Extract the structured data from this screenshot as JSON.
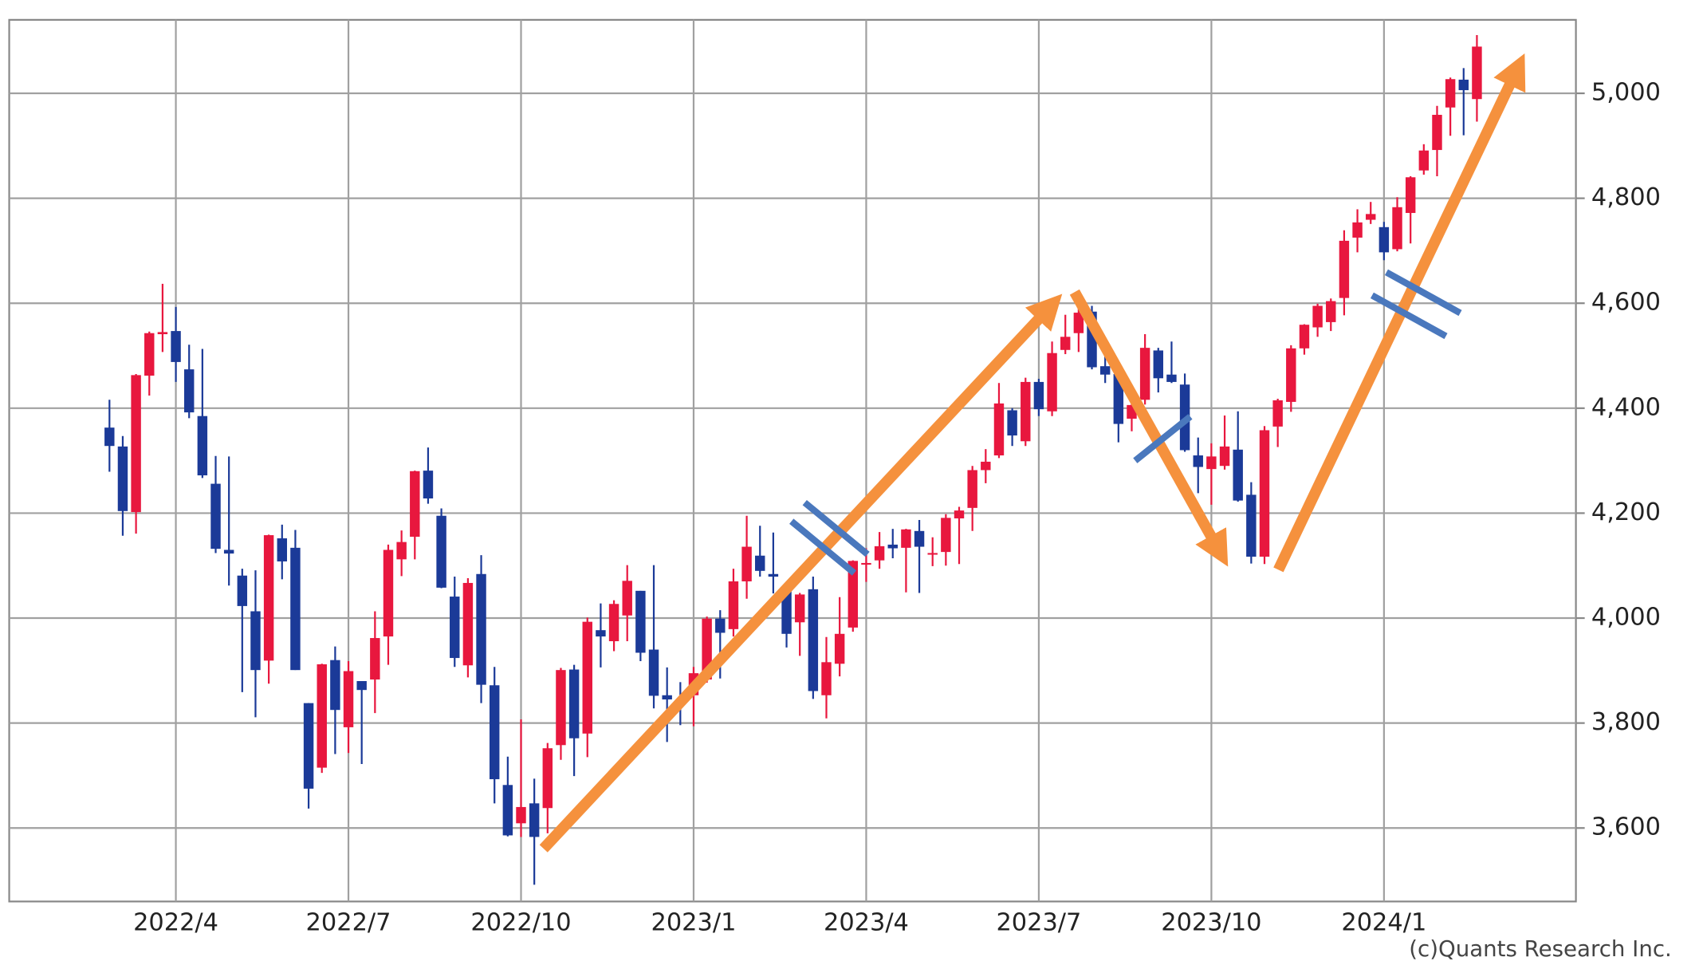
{
  "chart_data": {
    "type": "candlestick",
    "source": "(c)Quants Research Inc.",
    "categories": [
      null,
      null,
      null,
      null,
      null,
      "2022/4",
      null,
      null,
      null,
      null,
      null,
      null,
      null,
      null,
      null,
      null,
      null,
      null,
      "2022/7",
      null,
      null,
      null,
      null,
      null,
      null,
      null,
      null,
      null,
      null,
      null,
      null,
      "2022/10",
      null,
      null,
      null,
      null,
      null,
      null,
      null,
      null,
      null,
      null,
      null,
      null,
      "2023/1",
      null,
      null,
      null,
      null,
      null,
      null,
      null,
      null,
      null,
      null,
      null,
      null,
      "2023/4",
      null,
      null,
      null,
      null,
      null,
      null,
      null,
      null,
      null,
      null,
      null,
      null,
      "2023/7",
      null,
      null,
      null,
      null,
      null,
      null,
      null,
      null,
      null,
      null,
      null,
      null,
      "2023/10",
      null,
      null,
      null,
      null,
      null,
      null,
      null,
      null,
      null,
      null,
      null,
      null,
      "2024/1",
      null,
      null,
      null,
      null,
      null,
      null,
      null
    ],
    "open": [
      4363,
      4327,
      4202,
      4462,
      4541,
      4547,
      4474,
      4385,
      4256,
      4130,
      4081,
      4013,
      3919,
      4152,
      4134,
      3838,
      3715,
      3920,
      3792,
      3880,
      3883,
      3965,
      4112,
      4155,
      4281,
      4195,
      4041,
      3910,
      4084,
      3872,
      3682,
      3609,
      3647,
      3638,
      3758,
      3902,
      3780,
      3977,
      3956,
      4005,
      4052,
      3940,
      3853,
      3843,
      3853,
      3883,
      3999,
      3979,
      4070,
      4119,
      4084,
      4053,
      3992,
      4055,
      3853,
      3913,
      3982,
      4102,
      4110,
      4140,
      4134,
      4166,
      4124,
      4126,
      4190,
      4210,
      4282,
      4310,
      4396,
      4337,
      4450,
      4394,
      4511,
      4543,
      4584,
      4480,
      4465,
      4380,
      4416,
      4510,
      4464,
      4445,
      4310,
      4284,
      4290,
      4321,
      4235,
      4117,
      4365,
      4412,
      4514,
      4554,
      4564,
      4610,
      4725,
      4759,
      4745,
      4703,
      4772,
      4853,
      4892,
      4973,
      5026,
      4989
    ],
    "high": [
      4416,
      4347,
      4465,
      4546,
      4637,
      4593,
      4521,
      4513,
      4309,
      4308,
      4094,
      4091,
      4159,
      4178,
      4168,
      3838,
      3913,
      3946,
      3918,
      3880,
      4013,
      4140,
      4167,
      4281,
      4325,
      4209,
      4079,
      4076,
      4120,
      3907,
      3736,
      3807,
      3694,
      3762,
      3905,
      3911,
      4001,
      4028,
      4034,
      4101,
      4052,
      4101,
      3906,
      3878,
      3907,
      4003,
      4015,
      4094,
      4195,
      4176,
      4163,
      4053,
      4048,
      4079,
      3964,
      4040,
      4110,
      4133,
      4164,
      4170,
      4170,
      4187,
      4154,
      4198,
      4212,
      4290,
      4322,
      4448,
      4400,
      4458,
      4456,
      4527,
      4578,
      4607,
      4595,
      4528,
      4466,
      4421,
      4541,
      4515,
      4527,
      4466,
      4344,
      4333,
      4386,
      4394,
      4259,
      4366,
      4418,
      4520,
      4560,
      4599,
      4609,
      4739,
      4779,
      4793,
      4755,
      4802,
      4842,
      4903,
      4976,
      5030,
      5048,
      5111
    ],
    "low": [
      4279,
      4157,
      4161,
      4424,
      4507,
      4450,
      4381,
      4267,
      4124,
      4062,
      3859,
      3811,
      3875,
      4074,
      3901,
      3637,
      3705,
      3741,
      3743,
      3722,
      3819,
      3911,
      4080,
      4112,
      4218,
      4057,
      3907,
      3887,
      3838,
      3647,
      3584,
      3583,
      3492,
      3590,
      3730,
      3699,
      3735,
      3906,
      3937,
      3956,
      3918,
      3828,
      3764,
      3796,
      3794,
      3877,
      3885,
      3965,
      4037,
      4079,
      4047,
      3944,
      3928,
      3846,
      3809,
      3889,
      3974,
      4069,
      4094,
      4114,
      4049,
      4048,
      4099,
      4100,
      4103,
      4166,
      4257,
      4305,
      4328,
      4328,
      4385,
      4385,
      4503,
      4507,
      4474,
      4448,
      4335,
      4356,
      4407,
      4430,
      4448,
      4317,
      4238,
      4216,
      4283,
      4222,
      4104,
      4103,
      4326,
      4393,
      4502,
      4536,
      4547,
      4577,
      4697,
      4751,
      4682,
      4699,
      4714,
      4845,
      4842,
      4919,
      4920,
      4946
    ],
    "close": [
      4328,
      4204,
      4463,
      4543,
      4545,
      4488,
      4392,
      4272,
      4132,
      4123,
      4023,
      3901,
      4158,
      4108,
      3901,
      3675,
      3912,
      3825,
      3899,
      3863,
      3962,
      4130,
      4145,
      4280,
      4228,
      4058,
      3924,
      4067,
      3873,
      3693,
      3586,
      3640,
      3583,
      3752,
      3901,
      3771,
      3993,
      3965,
      4027,
      4071,
      3934,
      3852,
      3845,
      3839,
      3895,
      3999,
      3972,
      4070,
      4136,
      4090,
      4079,
      3970,
      4045,
      3861,
      3916,
      3970,
      4109,
      4105,
      4137,
      4133,
      4169,
      4136,
      4124,
      4191,
      4205,
      4282,
      4298,
      4409,
      4348,
      4450,
      4398,
      4505,
      4536,
      4582,
      4478,
      4464,
      4370,
      4406,
      4515,
      4457,
      4450,
      4320,
      4288,
      4308,
      4327,
      4224,
      4117,
      4358,
      4415,
      4514,
      4559,
      4595,
      4604,
      4719,
      4754,
      4770,
      4697,
      4783,
      4840,
      4891,
      4959,
      5027,
      5006,
      5089
    ],
    "up_color": "#e8173e",
    "down_color": "#1b3a98",
    "ylim": [
      3460,
      5140
    ],
    "yticks": [
      {
        "value": 3600,
        "label": "3,600"
      },
      {
        "value": 3800,
        "label": "3,800"
      },
      {
        "value": 4000,
        "label": "4,000"
      },
      {
        "value": 4200,
        "label": "4,200"
      },
      {
        "value": 4400,
        "label": "4,400"
      },
      {
        "value": 4600,
        "label": "4,600"
      },
      {
        "value": 4800,
        "label": "4,800"
      },
      {
        "value": 5000,
        "label": "5,000"
      }
    ],
    "grid": true
  }
}
